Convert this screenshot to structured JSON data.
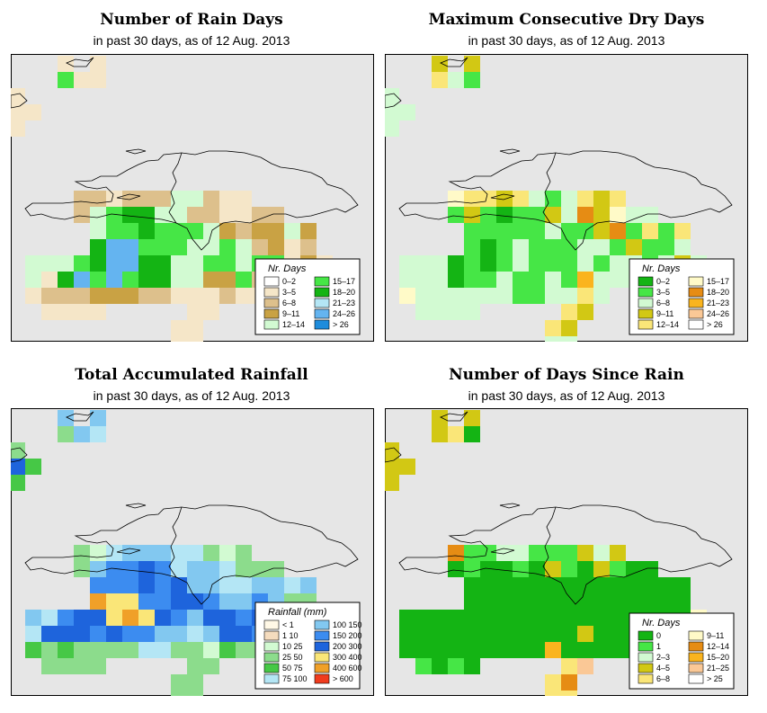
{
  "panels": [
    {
      "id": "rain_days",
      "title": "Number of Rain Days",
      "subtitle": "in past 30 days, as of  12 Aug. 2013",
      "legend": {
        "title": "Nr. Days",
        "entries": [
          {
            "label": "0–2",
            "color": "#ffffff"
          },
          {
            "label": "3–5",
            "color": "#f5e6c8"
          },
          {
            "label": "6–8",
            "color": "#ddc08c"
          },
          {
            "label": "9–11",
            "color": "#c9a244"
          },
          {
            "label": "12–14",
            "color": "#d2fad2"
          },
          {
            "label": "15–17",
            "color": "#46e646"
          },
          {
            "label": "18–20",
            "color": "#14b414"
          },
          {
            "label": "21–23",
            "color": "#b4e6f5"
          },
          {
            "label": "24–26",
            "color": "#64b4f0"
          },
          {
            "label": "> 26",
            "color": "#1e8cdc"
          }
        ]
      }
    },
    {
      "id": "dry_days",
      "title": "Maximum Consecutive Dry Days",
      "subtitle": "in past 30 days, as of  12 Aug. 2013",
      "legend": {
        "title": "Nr. Days",
        "entries": [
          {
            "label": "0–2",
            "color": "#14b414"
          },
          {
            "label": "3–5",
            "color": "#46e646"
          },
          {
            "label": "6–8",
            "color": "#d2fad2"
          },
          {
            "label": "9–11",
            "color": "#d2c814"
          },
          {
            "label": "12–14",
            "color": "#fae678"
          },
          {
            "label": "15–17",
            "color": "#fffac8"
          },
          {
            "label": "18–20",
            "color": "#e68c14"
          },
          {
            "label": "21–23",
            "color": "#fab41e"
          },
          {
            "label": "24–26",
            "color": "#fac896"
          },
          {
            "label": "> 26",
            "color": "#ffffff"
          }
        ]
      }
    },
    {
      "id": "rainfall",
      "title": "Total Accumulated Rainfall",
      "subtitle": "in past 30 days, as of  12 Aug. 2013",
      "legend": {
        "title": "Rainfall (mm)",
        "entries": [
          {
            "label": "< 1",
            "color": "#fff8e6"
          },
          {
            "label": "1   10",
            "color": "#f5dcbe"
          },
          {
            "label": "10   25",
            "color": "#d2fad2"
          },
          {
            "label": "25   50",
            "color": "#8cdc8c"
          },
          {
            "label": "50   75",
            "color": "#46c846"
          },
          {
            "label": "75   100",
            "color": "#b4e6f5"
          },
          {
            "label": "100   150",
            "color": "#82c8f0"
          },
          {
            "label": "150   200",
            "color": "#3c8cf0"
          },
          {
            "label": "200   300",
            "color": "#1e64dc"
          },
          {
            "label": "300   400",
            "color": "#fae678"
          },
          {
            "label": "400   600",
            "color": "#f0a028"
          },
          {
            "label": "> 600",
            "color": "#f03c1e"
          }
        ]
      }
    },
    {
      "id": "since_rain",
      "title": "Number of Days Since Rain",
      "subtitle": "in past 30 days, as of  12 Aug. 2013",
      "legend": {
        "title": "Nr. Days",
        "entries": [
          {
            "label": "0",
            "color": "#14b414"
          },
          {
            "label": "1",
            "color": "#46e646"
          },
          {
            "label": "2–3",
            "color": "#d2fad2"
          },
          {
            "label": "4–5",
            "color": "#d2c814"
          },
          {
            "label": "6–8",
            "color": "#fae678"
          },
          {
            "label": "9–11",
            "color": "#fffac8"
          },
          {
            "label": "12–14",
            "color": "#e68c14"
          },
          {
            "label": "15–20",
            "color": "#fab41e"
          },
          {
            "label": "21–25",
            "color": "#fac896"
          },
          {
            "label": "> 25",
            "color": "#ffffff"
          }
        ]
      }
    }
  ],
  "colors": {
    "map_background": "#e6e6e6",
    "border": "#000000",
    "coastline": "#000000"
  }
}
